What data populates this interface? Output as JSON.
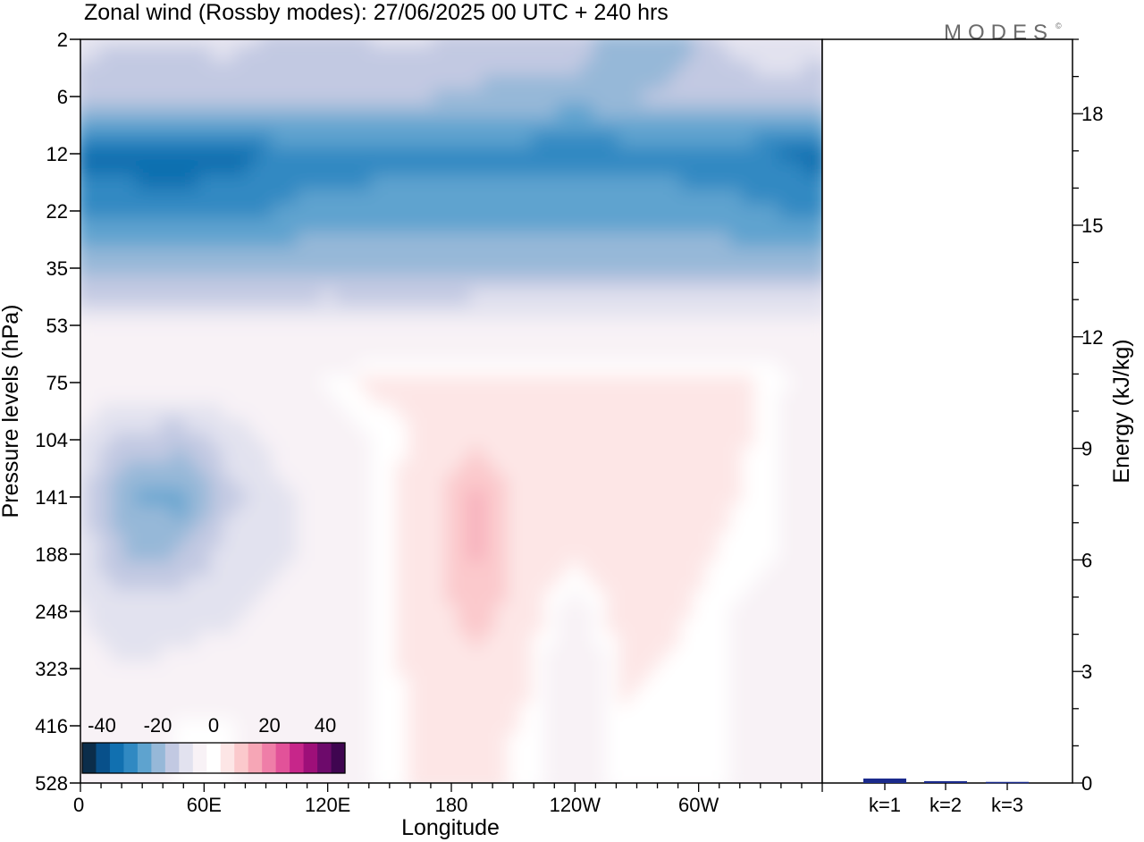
{
  "title": "Zonal wind (Rossby modes):  27/06/2025  00 UTC  + 240 hrs",
  "logo": "MODES",
  "logo_mark": "©",
  "chart_data": [
    {
      "type": "heatmap",
      "quantity": "Zonal wind (Rossby modes)",
      "xlabel": "Longitude",
      "ylabel": "Pressure levels (hPa)",
      "x_ticks": [
        "0",
        "60E",
        "120E",
        "180",
        "120W",
        "60W"
      ],
      "y_ticks": [
        "2",
        "6",
        "12",
        "22",
        "35",
        "53",
        "75",
        "104",
        "141",
        "188",
        "248",
        "323",
        "416",
        "528"
      ],
      "colorbar": {
        "tick_labels": [
          "-40",
          "-20",
          "0",
          "20",
          "40"
        ],
        "colors": [
          "#0b2d4a",
          "#08508a",
          "#1170b0",
          "#3089c2",
          "#5ea3cf",
          "#96b8d8",
          "#c2c9e2",
          "#e2e2ef",
          "#f8f2f6",
          "#ffffff",
          "#fde6e6",
          "#fbc9cc",
          "#f6a6b6",
          "#ef7ea8",
          "#e25299",
          "#c7268a",
          "#9e0f79",
          "#6d0a6b",
          "#3f0550"
        ]
      },
      "field_rows": [
        {
          "level": "2",
          "values": [
            -8,
            -10,
            -10,
            -8,
            -12,
            -12,
            -10,
            -10,
            -12,
            -14,
            -12,
            -20,
            -18,
            -10,
            -6,
            -8
          ]
        },
        {
          "level": "6",
          "values": [
            -14,
            -14,
            -14,
            -14,
            -14,
            -14,
            -14,
            -15,
            -16,
            -16,
            -18,
            -16,
            -14,
            -13,
            -13,
            -13
          ]
        },
        {
          "level": "12",
          "values": [
            -32,
            -34,
            -35,
            -33,
            -28,
            -28,
            -28,
            -28,
            -28,
            -28,
            -28,
            -28,
            -28,
            -28,
            -30,
            -33
          ]
        },
        {
          "level": "22",
          "values": [
            -26,
            -26,
            -26,
            -26,
            -25,
            -23,
            -22,
            -22,
            -22,
            -22,
            -22,
            -22,
            -22,
            -23,
            -25,
            -26
          ]
        },
        {
          "level": "35",
          "values": [
            -16,
            -16,
            -16,
            -16,
            -16,
            -16,
            -17,
            -17,
            -17,
            -17,
            -17,
            -17,
            -17,
            -17,
            -17,
            -17
          ]
        },
        {
          "level": "53",
          "values": [
            -5,
            -5,
            -5,
            -5,
            -5,
            -4,
            -4,
            -4,
            -3,
            -3,
            -3,
            -3,
            -3,
            -3,
            -3,
            -3
          ]
        },
        {
          "level": "75",
          "values": [
            -2,
            -2,
            -2,
            -2,
            -1,
            0,
            2,
            2,
            2,
            2,
            2,
            2,
            2,
            2,
            1,
            -2
          ]
        },
        {
          "level": "104",
          "values": [
            -6,
            -12,
            -13,
            -8,
            -4,
            -2,
            0,
            2,
            6,
            3,
            2,
            6,
            4,
            3,
            0,
            -4
          ]
        },
        {
          "level": "141",
          "values": [
            -8,
            -20,
            -22,
            -12,
            -6,
            -3,
            0,
            4,
            12,
            4,
            3,
            6,
            5,
            2,
            0,
            -4
          ]
        },
        {
          "level": "188",
          "values": [
            -7,
            -16,
            -15,
            -8,
            -6,
            -3,
            0,
            4,
            12,
            4,
            2,
            4,
            3,
            1,
            0,
            -4
          ]
        },
        {
          "level": "248",
          "values": [
            -5,
            -8,
            -7,
            -6,
            -4,
            -2,
            0,
            3,
            9,
            3,
            -2,
            3,
            2,
            0,
            -1,
            -3
          ]
        },
        {
          "level": "323",
          "values": [
            -3,
            -5,
            -4,
            -3,
            -2,
            -1,
            0,
            3,
            5,
            2,
            -3,
            2,
            1,
            0,
            -1,
            -2
          ]
        },
        {
          "level": "416",
          "values": [
            -2,
            -2,
            0,
            0,
            -1,
            -2,
            0,
            2,
            3,
            1,
            -3,
            1,
            0,
            0,
            -1,
            -2
          ]
        },
        {
          "level": "528",
          "values": [
            -2,
            -2,
            0,
            0,
            -1,
            -2,
            0,
            2,
            2,
            1,
            -3,
            1,
            0,
            0,
            -1,
            -2
          ]
        }
      ]
    },
    {
      "type": "bar",
      "ylabel": "Energy (kJ/kg)",
      "categories": [
        "k=1",
        "k=2",
        "k=3"
      ],
      "values": [
        0.12,
        0.05,
        0.03
      ],
      "ylim": [
        0,
        20
      ],
      "y_ticks": [
        "0",
        "3",
        "6",
        "9",
        "12",
        "15",
        "18"
      ],
      "bar_color": "#1a2a8c"
    }
  ]
}
